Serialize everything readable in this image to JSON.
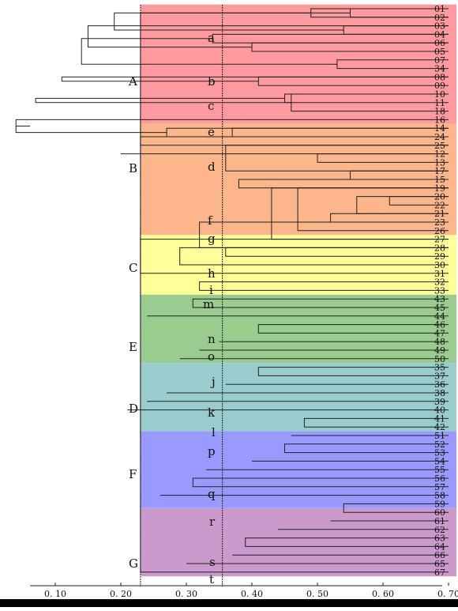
{
  "leaves": [
    "01",
    "02",
    "03",
    "04",
    "06",
    "05",
    "07",
    "34",
    "08",
    "09",
    "10",
    "11",
    "18",
    "16",
    "14",
    "24",
    "25",
    "12",
    "13",
    "17",
    "15",
    "19",
    "20",
    "22",
    "21",
    "23",
    "26",
    "27",
    "28",
    "29",
    "30",
    "31",
    "32",
    "33",
    "43",
    "45",
    "44",
    "46",
    "47",
    "48",
    "49",
    "50",
    "35",
    "37",
    "36",
    "38",
    "39",
    "40",
    "41",
    "42",
    "51",
    "52",
    "53",
    "54",
    "55",
    "56",
    "57",
    "58",
    "59",
    "60",
    "61",
    "62",
    "63",
    "64",
    "66",
    "65",
    "67"
  ],
  "clusters": [
    {
      "name": "A",
      "color": "#ff9a9e"
    },
    {
      "name": "B",
      "color": "#fdb58c"
    },
    {
      "name": "C",
      "color": "#ffff99"
    },
    {
      "name": "E",
      "color": "#99cc8e"
    },
    {
      "name": "D",
      "color": "#99cccc"
    },
    {
      "name": "F",
      "color": "#9999ff"
    },
    {
      "name": "G",
      "color": "#cc99cc"
    }
  ],
  "subclusters": [
    "a",
    "b",
    "c",
    "e",
    "d",
    "f",
    "g",
    "h",
    "i",
    "m",
    "n",
    "o",
    "j",
    "k",
    "l",
    "p",
    "q",
    "r",
    "s",
    "t"
  ],
  "axis": {
    "ticks": [
      0.1,
      0.2,
      0.3,
      0.4,
      0.5,
      0.6,
      0.7
    ],
    "tick_labels": [
      "0. 10",
      "0. 20",
      "0. 30",
      "0. 40",
      "0. 50",
      "0. 60",
      "0. 70"
    ],
    "thresholds": [
      0.23,
      0.355
    ]
  },
  "caption": "",
  "tree": [
    [
      "L",
      0,
      1,
      0.55
    ],
    [
      "L",
      2,
      3,
      0.54
    ],
    [
      "M",
      0,
      1,
      0.49
    ],
    [
      "M",
      2,
      2,
      0.44
    ],
    [
      "L",
      4,
      5,
      0.4
    ],
    [
      "M",
      3,
      4,
      0.34
    ],
    [
      "L",
      6,
      7,
      0.53
    ],
    [
      "M",
      8,
      8,
      0.46
    ],
    [
      "L",
      9,
      8,
      0.41
    ],
    [
      "L",
      10,
      11,
      0.45
    ],
    [
      "M",
      12,
      10,
      0.46
    ],
    [
      "L",
      13,
      13,
      0.39
    ],
    [
      "M",
      15,
      14,
      0.27
    ],
    [
      "M",
      16,
      15,
      0.23
    ],
    [
      "M",
      17,
      17,
      0.2
    ],
    [
      "L",
      14,
      15,
      0.37
    ],
    [
      "M",
      19,
      16,
      0.36
    ],
    [
      "L",
      17,
      18,
      0.5
    ],
    [
      "M",
      20,
      19,
      0.55
    ],
    [
      "M",
      21,
      20,
      0.38
    ],
    [
      "L",
      22,
      23,
      0.61
    ],
    [
      "M",
      24,
      22,
      0.56
    ],
    [
      "M",
      25,
      24,
      0.52
    ],
    [
      "M",
      26,
      21,
      0.47
    ],
    [
      "M",
      27,
      21,
      0.43
    ],
    [
      "M",
      28,
      25,
      0.32
    ],
    [
      "L",
      28,
      29,
      0.36
    ],
    [
      "M",
      30,
      28,
      0.29
    ],
    [
      "M",
      31,
      27,
      0.23
    ],
    [
      "L",
      32,
      33,
      0.32
    ],
    [
      "M",
      34,
      35,
      0.31
    ],
    [
      "M",
      36,
      36,
      0.24
    ],
    [
      "L",
      37,
      38,
      0.41
    ],
    [
      "M",
      39,
      39,
      0.35
    ],
    [
      "M",
      40,
      40,
      0.32
    ],
    [
      "M",
      41,
      41,
      0.29
    ],
    [
      "L",
      42,
      43,
      0.41
    ],
    [
      "M",
      44,
      44,
      0.36
    ],
    [
      "M",
      45,
      45,
      0.27
    ],
    [
      "M",
      46,
      46,
      0.24
    ],
    [
      "M",
      47,
      47,
      0.21
    ],
    [
      "L",
      48,
      49,
      0.48
    ],
    [
      "M",
      50,
      50,
      0.46
    ],
    [
      "L",
      51,
      52,
      0.45
    ],
    [
      "M",
      53,
      53,
      0.4
    ],
    [
      "M",
      54,
      54,
      0.33
    ],
    [
      "L",
      55,
      56,
      0.31
    ],
    [
      "M",
      57,
      57,
      0.26
    ],
    [
      "L",
      58,
      59,
      0.54
    ],
    [
      "M",
      60,
      60,
      0.52
    ],
    [
      "M",
      61,
      61,
      0.44
    ],
    [
      "L",
      62,
      63,
      0.39
    ],
    [
      "M",
      64,
      64,
      0.37
    ],
    [
      "M",
      65,
      65,
      0.3
    ],
    [
      "L",
      66,
      67,
      0.23
    ],
    [
      "L",
      68,
      69,
      0.19
    ],
    [
      "L",
      70,
      71,
      0.15
    ],
    [
      "L",
      72,
      73,
      0.14
    ],
    [
      "L",
      74,
      75,
      0.11
    ],
    [
      "L",
      76,
      77,
      0.07
    ],
    [
      "L",
      78,
      79,
      0.04
    ]
  ]
}
